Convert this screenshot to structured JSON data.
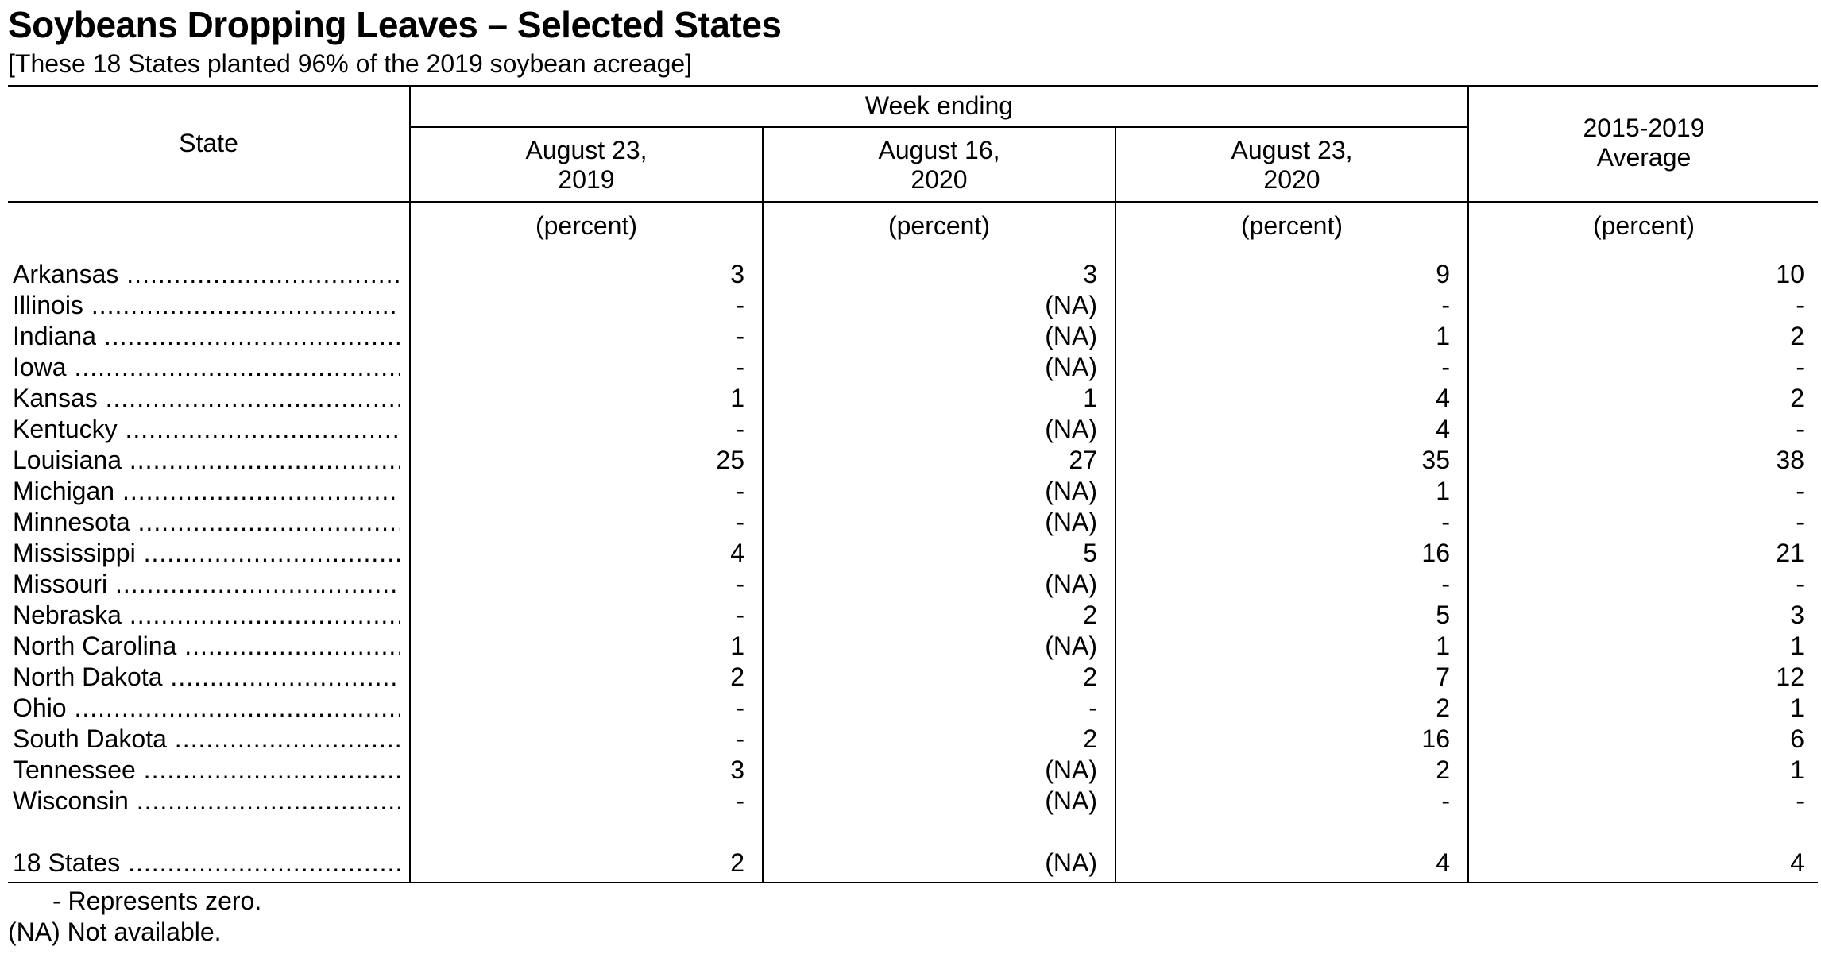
{
  "title": "Soybeans Dropping Leaves – Selected States",
  "subtitle": "[These 18 States planted 96% of the 2019 soybean acreage]",
  "header": {
    "state": "State",
    "week_ending": "Week ending",
    "col1_line1": "August 23,",
    "col1_line2": "2019",
    "col2_line1": "August 16,",
    "col2_line2": "2020",
    "col3_line1": "August 23,",
    "col3_line2": "2020",
    "col4_line1": "2015-2019",
    "col4_line2": "Average",
    "unit": "(percent)"
  },
  "rows": [
    {
      "state": "Arkansas",
      "v1": "3",
      "v2": "3",
      "v3": "9",
      "v4": "10"
    },
    {
      "state": "Illinois",
      "v1": "-",
      "v2": "(NA)",
      "v3": "-",
      "v4": "-"
    },
    {
      "state": "Indiana",
      "v1": "-",
      "v2": "(NA)",
      "v3": "1",
      "v4": "2"
    },
    {
      "state": "Iowa",
      "v1": "-",
      "v2": "(NA)",
      "v3": "-",
      "v4": "-"
    },
    {
      "state": "Kansas",
      "v1": "1",
      "v2": "1",
      "v3": "4",
      "v4": "2"
    },
    {
      "state": "Kentucky",
      "v1": "-",
      "v2": "(NA)",
      "v3": "4",
      "v4": "-"
    },
    {
      "state": "Louisiana",
      "v1": "25",
      "v2": "27",
      "v3": "35",
      "v4": "38"
    },
    {
      "state": "Michigan",
      "v1": "-",
      "v2": "(NA)",
      "v3": "1",
      "v4": "-"
    },
    {
      "state": "Minnesota",
      "v1": "-",
      "v2": "(NA)",
      "v3": "-",
      "v4": "-"
    },
    {
      "state": "Mississippi",
      "v1": "4",
      "v2": "5",
      "v3": "16",
      "v4": "21"
    },
    {
      "state": "Missouri",
      "v1": "-",
      "v2": "(NA)",
      "v3": "-",
      "v4": "-"
    },
    {
      "state": "Nebraska",
      "v1": "-",
      "v2": "2",
      "v3": "5",
      "v4": "3"
    },
    {
      "state": "North Carolina",
      "v1": "1",
      "v2": "(NA)",
      "v3": "1",
      "v4": "1"
    },
    {
      "state": "North Dakota",
      "v1": "2",
      "v2": "2",
      "v3": "7",
      "v4": "12"
    },
    {
      "state": "Ohio",
      "v1": "-",
      "v2": "-",
      "v3": "2",
      "v4": "1"
    },
    {
      "state": "South Dakota",
      "v1": "-",
      "v2": "2",
      "v3": "16",
      "v4": "6"
    },
    {
      "state": "Tennessee",
      "v1": "3",
      "v2": "(NA)",
      "v3": "2",
      "v4": "1"
    },
    {
      "state": "Wisconsin",
      "v1": "-",
      "v2": "(NA)",
      "v3": "-",
      "v4": "-"
    }
  ],
  "total": {
    "state": "18 States",
    "v1": "2",
    "v2": "(NA)",
    "v3": "4",
    "v4": "4"
  },
  "footnotes": {
    "zero": "- Represents zero.",
    "na": "(NA) Not available."
  }
}
